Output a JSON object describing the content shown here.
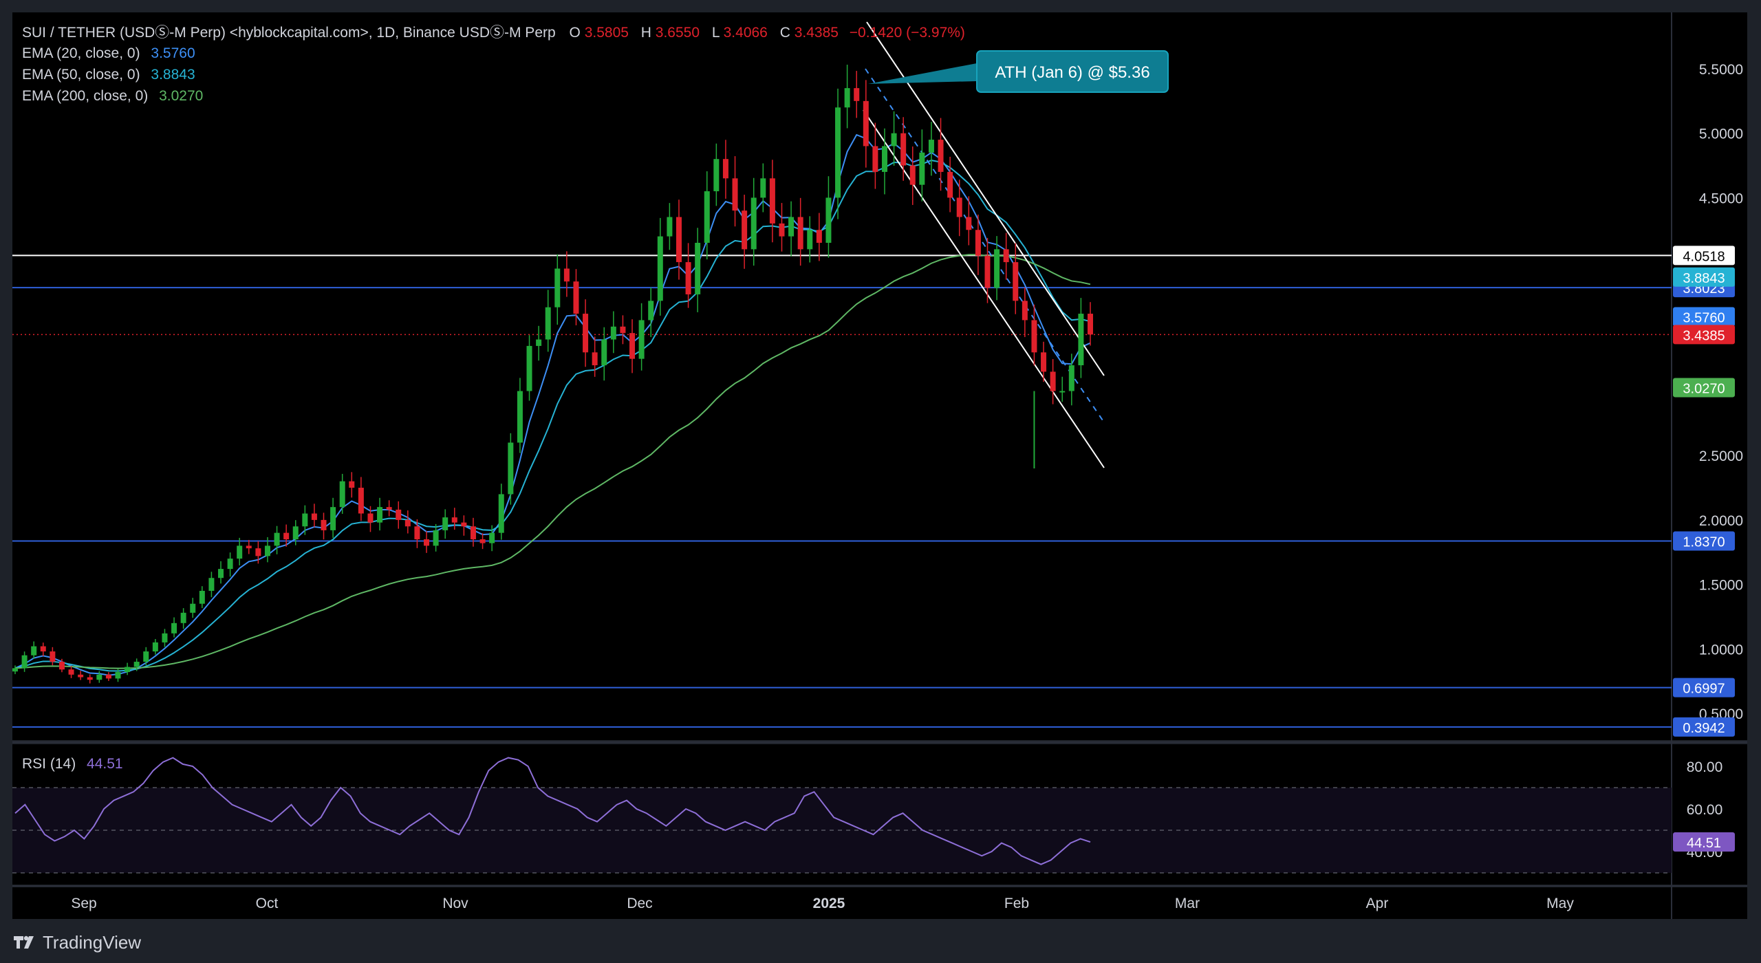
{
  "header": {
    "symbol": "SUI / TETHER (USDⓈ-M Perp) <hyblockcapital.com>, 1D, Binance USDⓈ-M Perp",
    "o_label": "O",
    "o_value": "3.5805",
    "h_label": "H",
    "h_value": "3.6550",
    "l_label": "L",
    "l_value": "3.4066",
    "c_label": "C",
    "c_value": "3.4385",
    "change": "−0.1420 (−3.97%)"
  },
  "indicators": [
    {
      "label": "EMA (20, close, 0)",
      "value": "3.5760",
      "color": "#3d8ff5"
    },
    {
      "label": "EMA (50, close, 0)",
      "value": "3.8843",
      "color": "#26b3d4"
    },
    {
      "label": "EMA (200, close, 0)",
      "value": "3.0270",
      "color": "#5fb865"
    }
  ],
  "annotation": {
    "text": "ATH (Jan 6) @ $5.36",
    "price": 5.36
  },
  "rsi": {
    "label": "RSI (14)",
    "value": "44.51",
    "color": "#8e6fd8"
  },
  "footer": {
    "brand": "TradingView"
  },
  "colors": {
    "background": "#000000",
    "frame": "#1e2229",
    "up": "#22ab3a",
    "down": "#e0212b",
    "support": "#2f5fd9",
    "resistance": "#ffffff",
    "price_line": "#e0212b",
    "rsi_band": "#0f0b1a",
    "annotation_bg": "#0e7d92",
    "text": "#d1d4dc"
  },
  "chart_data": {
    "type": "candlestick",
    "x_axis_labels": [
      "Sep",
      "Oct",
      "Nov",
      "Dec",
      "2025",
      "Feb",
      "Mar",
      "Apr",
      "May"
    ],
    "y_ticks": [
      "5.5000",
      "5.0000",
      "4.5000",
      "2.5000",
      "2.0000",
      "1.5000",
      "1.0000",
      "0.5000"
    ],
    "y_tick_values": [
      5.5,
      5.0,
      4.5,
      2.5,
      2.0,
      1.5,
      1.0,
      0.5
    ],
    "horizontal_levels": [
      {
        "value": 4.0518,
        "label": "4.0518",
        "kind": "resistance"
      },
      {
        "value": 3.8023,
        "label": "3.8023",
        "kind": "support"
      },
      {
        "value": 1.837,
        "label": "1.8370",
        "kind": "support"
      },
      {
        "value": 0.6997,
        "label": "0.6997",
        "kind": "support"
      },
      {
        "value": 0.3942,
        "label": "0.3942",
        "kind": "support"
      }
    ],
    "price_tags": [
      {
        "value": 3.8843,
        "label": "3.8843",
        "color": "#26b3d4"
      },
      {
        "value": 3.576,
        "label": "3.5760",
        "color": "#2f7ff0"
      },
      {
        "value": 3.4385,
        "label": "3.4385",
        "color": "#e0212b"
      },
      {
        "value": 3.027,
        "label": "3.0270",
        "color": "#4caf50"
      }
    ],
    "ohlc_close_path": [
      0.85,
      0.95,
      1.02,
      0.98,
      0.9,
      0.84,
      0.8,
      0.78,
      0.76,
      0.8,
      0.77,
      0.82,
      0.86,
      0.9,
      0.98,
      1.05,
      1.12,
      1.2,
      1.28,
      1.35,
      1.45,
      1.55,
      1.62,
      1.7,
      1.8,
      1.78,
      1.72,
      1.8,
      1.9,
      1.85,
      1.95,
      2.05,
      2.0,
      1.92,
      2.1,
      2.3,
      2.25,
      2.05,
      1.98,
      2.1,
      2.08,
      2.0,
      1.95,
      1.85,
      1.8,
      1.92,
      2.02,
      1.98,
      1.95,
      1.85,
      1.82,
      1.9,
      2.2,
      2.6,
      3.0,
      3.35,
      3.4,
      3.65,
      3.95,
      3.85,
      3.6,
      3.3,
      3.2,
      3.4,
      3.5,
      3.45,
      3.25,
      3.55,
      3.7,
      4.2,
      4.35,
      4.0,
      3.75,
      4.15,
      4.55,
      4.8,
      4.65,
      4.4,
      4.1,
      4.5,
      4.65,
      4.3,
      4.2,
      4.35,
      4.1,
      4.25,
      4.15,
      4.5,
      5.2,
      5.35,
      5.25,
      4.9,
      4.7,
      4.9,
      5.0,
      4.75,
      4.6,
      4.85,
      4.95,
      4.7,
      4.5,
      4.35,
      4.25,
      4.05,
      3.8,
      4.1,
      4.0,
      3.7,
      3.55,
      3.3,
      3.15,
      3.0,
      3.0,
      3.2,
      3.6,
      3.4385
    ],
    "annotations_y": {
      "ath_price": 5.36
    },
    "ema20_last": 3.576,
    "ema50_last": 3.8843,
    "ema200_last": 3.027,
    "rsi_ticks": [
      "80.00",
      "60.00",
      "40.00"
    ],
    "rsi_tick_values": [
      80,
      60,
      40
    ],
    "rsi_series": [
      58,
      62,
      55,
      48,
      45,
      47,
      50,
      46,
      52,
      60,
      64,
      66,
      68,
      72,
      78,
      82,
      84,
      81,
      80,
      76,
      70,
      66,
      62,
      60,
      58,
      56,
      54,
      58,
      62,
      56,
      52,
      56,
      64,
      70,
      66,
      58,
      54,
      52,
      50,
      48,
      52,
      55,
      58,
      54,
      50,
      48,
      56,
      68,
      78,
      82,
      84,
      83,
      80,
      70,
      66,
      64,
      62,
      60,
      56,
      54,
      58,
      62,
      64,
      60,
      58,
      55,
      52,
      56,
      60,
      58,
      54,
      52,
      50,
      52,
      54,
      52,
      50,
      54,
      56,
      58,
      66,
      68,
      62,
      56,
      54,
      52,
      50,
      48,
      52,
      56,
      58,
      54,
      50,
      48,
      46,
      44,
      42,
      40,
      38,
      40,
      44,
      42,
      38,
      36,
      34,
      36,
      40,
      44,
      46,
      44.51
    ],
    "rsi_value": 44.51,
    "ylim": [
      0.3,
      5.8
    ]
  }
}
